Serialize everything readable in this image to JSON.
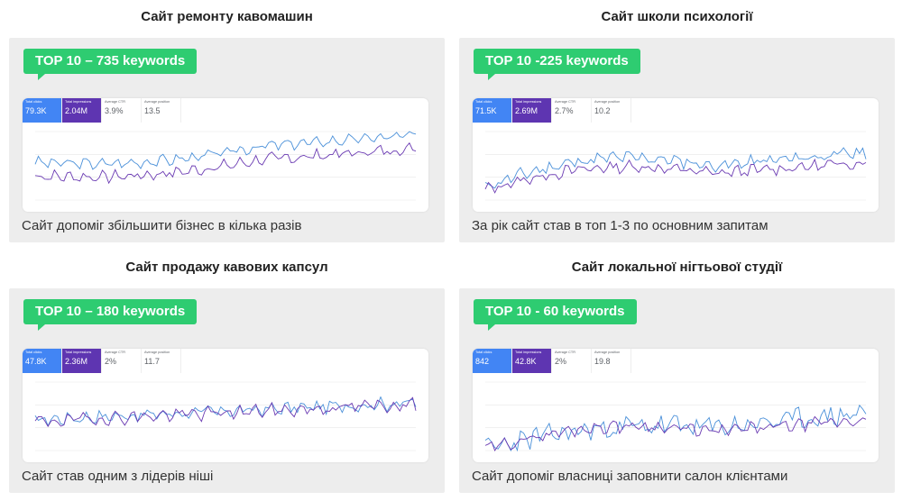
{
  "cases": [
    {
      "title": "Сайт ремонту кавомашин",
      "badge": "TOP 10 – 735 keywords",
      "caption": "Сайт допоміг збільшити бізнес в кілька разів",
      "metrics": [
        {
          "label": "Total clicks",
          "value": "79.3K"
        },
        {
          "label": "Total impressions",
          "value": "2.04M"
        },
        {
          "label": "Average CTR",
          "value": "3.9%"
        },
        {
          "label": "Average position",
          "value": "13.5"
        }
      ],
      "chart_data": {
        "type": "line",
        "series": [
          {
            "color": "#4a90d9",
            "points": 120,
            "start": 0.55,
            "end": 0.95,
            "dip": 0.38,
            "noise": 0.1,
            "seed": 3
          },
          {
            "color": "#6a3ab2",
            "points": 120,
            "start": 0.35,
            "end": 0.75,
            "dip": 0.2,
            "noise": 0.12,
            "seed": 7
          }
        ],
        "grid": true
      }
    },
    {
      "title": "Сайт школи психології",
      "badge": "TOP 10 -225 keywords",
      "caption": "За рік сайт став в топ 1-3 по основним запитам",
      "metrics": [
        {
          "label": "Total clicks",
          "value": "71.5K"
        },
        {
          "label": "Total impressions",
          "value": "2.69M"
        },
        {
          "label": "Average CTR",
          "value": "2.7%"
        },
        {
          "label": "Average position",
          "value": "10.2"
        }
      ],
      "chart_data": {
        "type": "line",
        "series": [
          {
            "color": "#4a90d9",
            "points": 120,
            "start": 0.2,
            "end": 0.7,
            "dip": 0.75,
            "noise": 0.14,
            "seed": 11
          },
          {
            "color": "#6a3ab2",
            "points": 120,
            "start": 0.15,
            "end": 0.55,
            "dip": 0.6,
            "noise": 0.12,
            "seed": 13
          }
        ],
        "grid": true
      }
    },
    {
      "title": "Сайт продажу кавових капсул",
      "badge": "TOP 10 – 180 keywords",
      "caption": "Сайт став одним з лідерів ніші",
      "metrics": [
        {
          "label": "Total clicks",
          "value": "47.8K"
        },
        {
          "label": "Total impressions",
          "value": "2.36M"
        },
        {
          "label": "Average CTR",
          "value": "2%"
        },
        {
          "label": "Average position",
          "value": "11.7"
        }
      ],
      "chart_data": {
        "type": "line",
        "series": [
          {
            "color": "#4a90d9",
            "points": 120,
            "start": 0.45,
            "end": 0.7,
            "dip": 0.5,
            "noise": 0.14,
            "seed": 17
          },
          {
            "color": "#6a3ab2",
            "points": 120,
            "start": 0.42,
            "end": 0.68,
            "dip": 0.48,
            "noise": 0.14,
            "seed": 19
          }
        ],
        "grid": true
      }
    },
    {
      "title": "Сайт локальної нігтьової студії",
      "badge": "TOP 10 - 60 keywords",
      "caption": "Сайт допоміг власниці заповнити салон клієнтами",
      "metrics": [
        {
          "label": "Total clicks",
          "value": "842"
        },
        {
          "label": "Total impressions",
          "value": "42.8K"
        },
        {
          "label": "Average CTR",
          "value": "2%"
        },
        {
          "label": "Average position",
          "value": "19.8"
        }
      ],
      "chart_data": {
        "type": "line",
        "series": [
          {
            "color": "#4a90d9",
            "points": 120,
            "start": 0.02,
            "end": 0.55,
            "dip": 0.35,
            "noise": 0.3,
            "seed": 23
          },
          {
            "color": "#6a3ab2",
            "points": 120,
            "start": 0.02,
            "end": 0.45,
            "dip": 0.45,
            "noise": 0.12,
            "seed": 29
          }
        ],
        "grid": true
      }
    }
  ],
  "colors": {
    "badge": "#2ecc71",
    "clicks": "#4285f4",
    "impressions": "#5e35b1",
    "panel": "#ededed"
  }
}
